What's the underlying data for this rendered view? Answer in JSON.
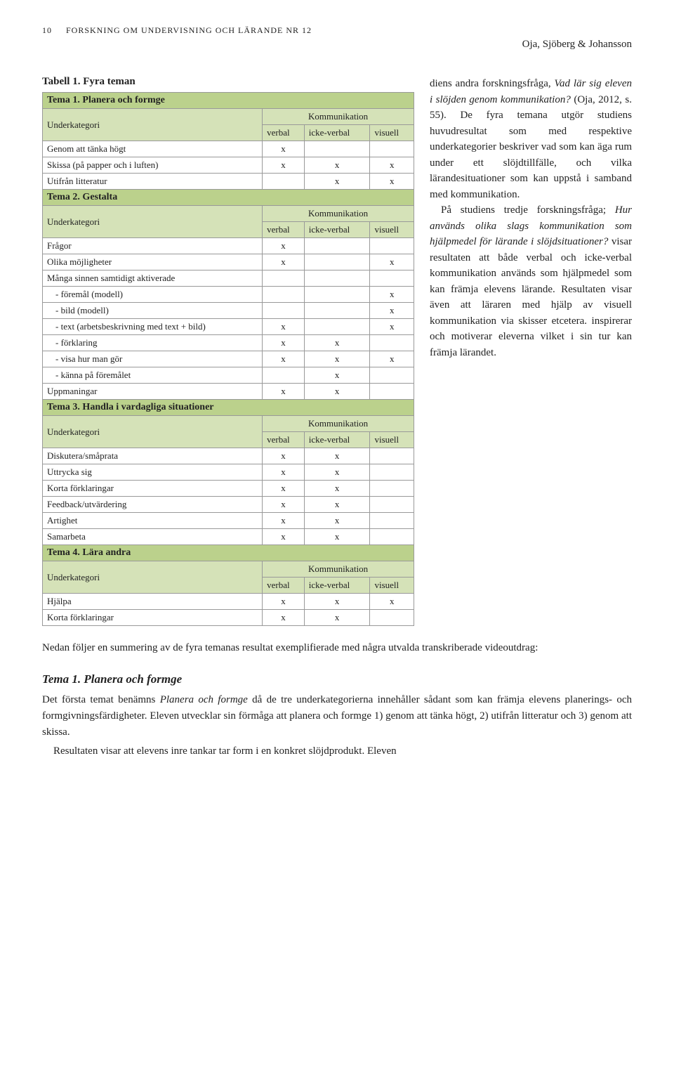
{
  "header": {
    "page_num": "10",
    "running_head": "FORSKNING OM UNDERVISNING OCH LÄRANDE  NR 12",
    "authors": "Oja, Sjöberg & Johansson"
  },
  "caption": "Tabell 1. Fyra teman",
  "table": {
    "kom_label": "Kommunikation",
    "cols": [
      "verbal",
      "icke-verbal",
      "visuell"
    ],
    "underkat": "Underkategori",
    "blocks": [
      {
        "title": "Tema 1. Planera och formge",
        "rows": [
          {
            "label": "Genom att tänka högt",
            "marks": [
              "x",
              "",
              ""
            ]
          },
          {
            "label": "Skissa (på papper och i luften)",
            "marks": [
              "x",
              "x",
              "x"
            ]
          },
          {
            "label": "Utifrån litteratur",
            "marks": [
              "",
              "x",
              "x"
            ]
          }
        ]
      },
      {
        "title": "Tema 2. Gestalta",
        "rows": [
          {
            "label": "Frågor",
            "marks": [
              "x",
              "",
              ""
            ]
          },
          {
            "label": "Olika möjligheter",
            "marks": [
              "x",
              "",
              "x"
            ]
          },
          {
            "label": "Många sinnen samtidigt aktiverade",
            "marks": [
              "",
              "",
              ""
            ]
          },
          {
            "label": "-   föremål (modell)",
            "indent": true,
            "marks": [
              "",
              "",
              "x"
            ]
          },
          {
            "label": "-   bild (modell)",
            "indent": true,
            "marks": [
              "",
              "",
              "x"
            ]
          },
          {
            "label": "-   text (arbetsbeskrivning med text + bild)",
            "indent": true,
            "marks": [
              "x",
              "",
              "x"
            ]
          },
          {
            "label": "-   förklaring",
            "indent": true,
            "marks": [
              "x",
              "x",
              ""
            ]
          },
          {
            "label": "-   visa hur man gör",
            "indent": true,
            "marks": [
              "x",
              "x",
              "x"
            ]
          },
          {
            "label": "-   känna på föremålet",
            "indent": true,
            "marks": [
              "",
              "x",
              ""
            ]
          },
          {
            "label": "Uppmaningar",
            "marks": [
              "x",
              "x",
              ""
            ]
          }
        ]
      },
      {
        "title": "Tema 3. Handla i vardagliga situationer",
        "rows": [
          {
            "label": "Diskutera/småprata",
            "marks": [
              "x",
              "x",
              ""
            ]
          },
          {
            "label": "Uttrycka sig",
            "marks": [
              "x",
              "x",
              ""
            ]
          },
          {
            "label": "Korta förklaringar",
            "marks": [
              "x",
              "x",
              ""
            ]
          },
          {
            "label": "Feedback/utvärdering",
            "marks": [
              "x",
              "x",
              ""
            ]
          },
          {
            "label": "Artighet",
            "marks": [
              "x",
              "x",
              ""
            ]
          },
          {
            "label": "Samarbeta",
            "marks": [
              "x",
              "x",
              ""
            ]
          }
        ]
      },
      {
        "title": "Tema 4. Lära andra",
        "rows": [
          {
            "label": "Hjälpa",
            "marks": [
              "x",
              "x",
              "x"
            ]
          },
          {
            "label": "Korta förklaringar",
            "marks": [
              "x",
              "x",
              ""
            ]
          }
        ]
      }
    ]
  },
  "right_text": {
    "p1a": "diens andra forskningsfråga, ",
    "p1b": "Vad lär sig eleven i slöjden genom kommunikation?",
    "p1c": " (Oja, 2012, s. 55). De fyra temana utgör studiens huvudresultat som med respektive underkategorier beskriver vad som kan äga rum under ett slöjdtillfälle, och vilka lärandesituationer som kan uppstå i samband med kommunikation.",
    "p2a": "På studiens tredje forskningsfråga; ",
    "p2b": "Hur används olika slags kommunikation som hjälpmedel för lärande i slöjdsituationer?",
    "p2c": " visar resultaten att både verbal och icke-verbal kommunikation används som hjälpmedel som kan främja elevens lärande. Resultaten visar även att läraren med hjälp av visuell kommunikation via skisser etcetera. inspirerar och motiverar eleverna vilket i sin tur kan främja lärandet."
  },
  "below": {
    "intro": "Nedan följer en summering av de fyra temanas resultat exemplifierade med några utvalda transkriberade videoutdrag:",
    "section_title": "Tema 1. Planera och formge",
    "p1a": "Det första temat benämns ",
    "p1b": "Planera och formge",
    "p1c": " då de tre underkategorierna innehåller sådant som kan främja elevens planerings- och formgivningsfärdigheter. Eleven utvecklar sin förmåga att planera och formge 1) genom att tänka högt, 2) utifrån litteratur och 3) genom att skissa.",
    "p2": "Resultaten visar att elevens inre tankar tar form i en konkret slöjdprodukt. Eleven"
  }
}
